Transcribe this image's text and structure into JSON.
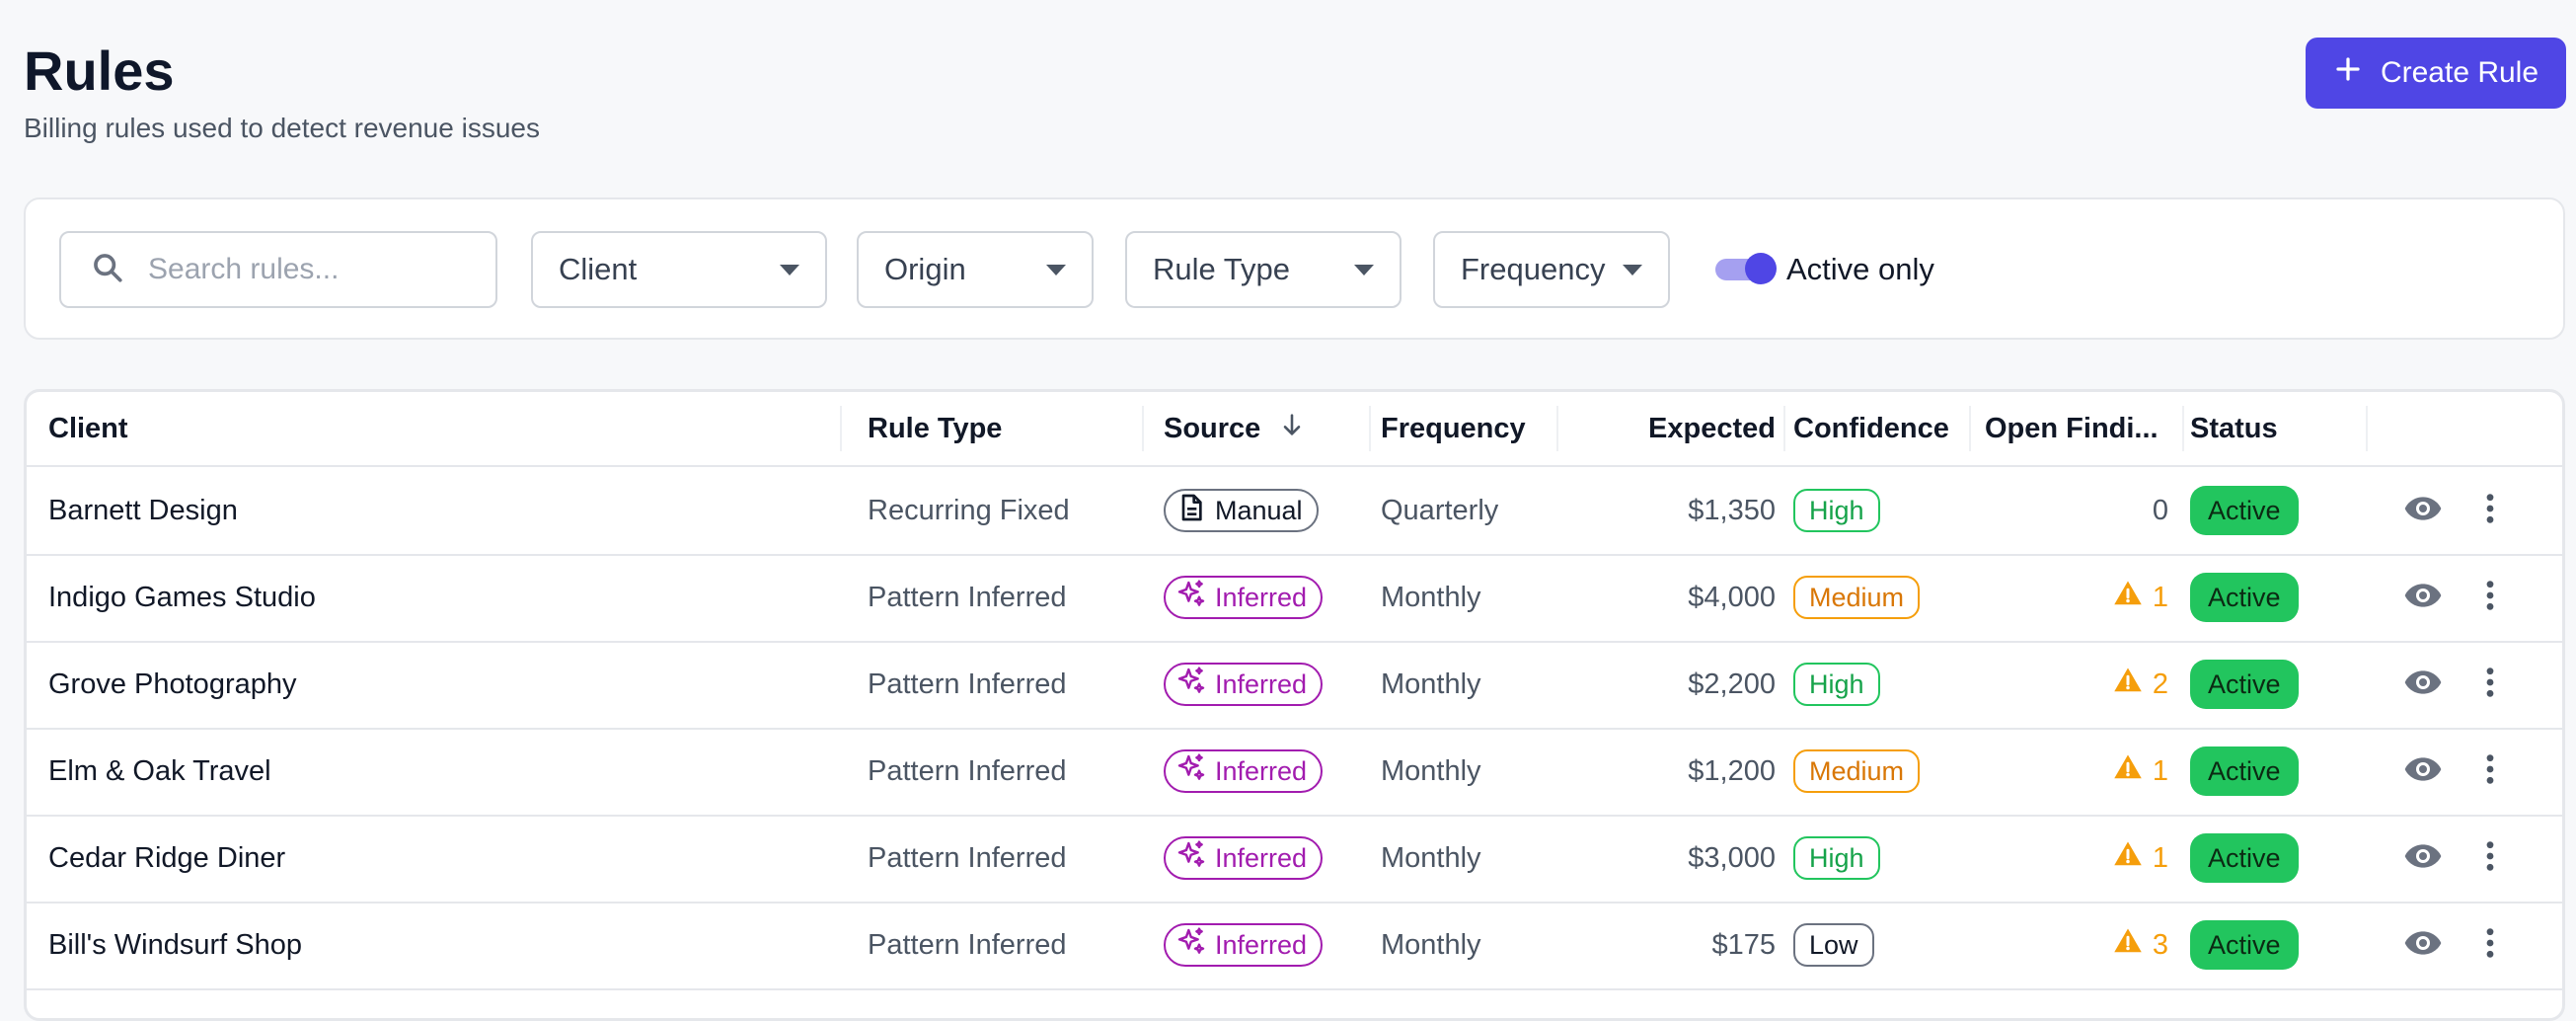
{
  "header": {
    "title": "Rules",
    "subtitle": "Billing rules used to detect revenue issues",
    "create_button_label": "Create Rule",
    "create_button_icon": "plus-icon"
  },
  "filters": {
    "search_placeholder": "Search rules...",
    "search_value": "",
    "client_label": "Client",
    "origin_label": "Origin",
    "rule_type_label": "Rule Type",
    "frequency_label": "Frequency",
    "active_only_label": "Active only",
    "active_only_checked": true
  },
  "table": {
    "columns": {
      "client": "Client",
      "rule_type": "Rule Type",
      "source": "Source",
      "frequency": "Frequency",
      "expected": "Expected",
      "confidence": "Confidence",
      "open_findings": "Open Findi...",
      "status": "Status"
    },
    "sort": {
      "column": "source",
      "direction": "descending"
    },
    "rows": [
      {
        "client": "Barnett Design",
        "rule_type": "Recurring Fixed",
        "source": "Manual",
        "source_kind": "manual",
        "frequency": "Quarterly",
        "expected": "$1,350",
        "confidence": "High",
        "confidence_level": "high",
        "open_findings": "0",
        "status": "Active"
      },
      {
        "client": "Indigo Games Studio",
        "rule_type": "Pattern Inferred",
        "source": "Inferred",
        "source_kind": "inferred",
        "frequency": "Monthly",
        "expected": "$4,000",
        "confidence": "Medium",
        "confidence_level": "medium",
        "open_findings": "1",
        "status": "Active"
      },
      {
        "client": "Grove Photography",
        "rule_type": "Pattern Inferred",
        "source": "Inferred",
        "source_kind": "inferred",
        "frequency": "Monthly",
        "expected": "$2,200",
        "confidence": "High",
        "confidence_level": "high",
        "open_findings": "2",
        "status": "Active"
      },
      {
        "client": "Elm & Oak Travel",
        "rule_type": "Pattern Inferred",
        "source": "Inferred",
        "source_kind": "inferred",
        "frequency": "Monthly",
        "expected": "$1,200",
        "confidence": "Medium",
        "confidence_level": "medium",
        "open_findings": "1",
        "status": "Active"
      },
      {
        "client": "Cedar Ridge Diner",
        "rule_type": "Pattern Inferred",
        "source": "Inferred",
        "source_kind": "inferred",
        "frequency": "Monthly",
        "expected": "$3,000",
        "confidence": "High",
        "confidence_level": "high",
        "open_findings": "1",
        "status": "Active"
      },
      {
        "client": "Bill's Windsurf Shop",
        "rule_type": "Pattern Inferred",
        "source": "Inferred",
        "source_kind": "inferred",
        "frequency": "Monthly",
        "expected": "$175",
        "confidence": "Low",
        "confidence_level": "low",
        "open_findings": "3",
        "status": "Active"
      }
    ]
  },
  "colors": {
    "accent": "#4f46e5",
    "inferred": "#a21caf",
    "warning": "#f59e0b",
    "success": "#22c55e"
  }
}
